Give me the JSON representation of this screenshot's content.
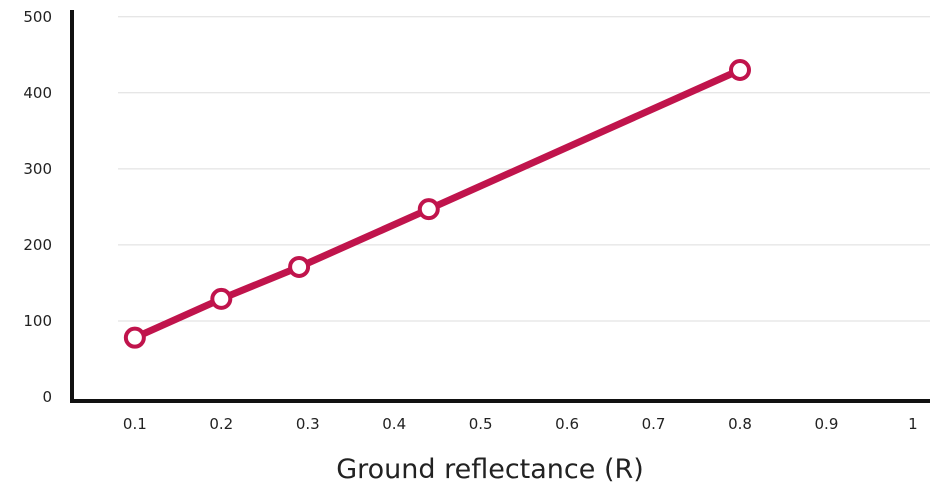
{
  "chart_data": {
    "type": "line",
    "title": "",
    "xlabel": "Ground reflectance (R)",
    "ylabel": "",
    "xlim": [
      0,
      1
    ],
    "ylim": [
      0,
      500
    ],
    "x_ticks": [
      "0.1",
      "0.2",
      "0.3",
      "0.4",
      "0.5",
      "0.6",
      "0.7",
      "0.8",
      "0.9",
      "1"
    ],
    "y_ticks": [
      "0",
      "100",
      "200",
      "300",
      "400",
      "500"
    ],
    "grid": "horizontal",
    "series": [
      {
        "x": [
          0.1,
          0.2,
          0.29,
          0.44,
          0.8
        ],
        "y": [
          78,
          129,
          171,
          247,
          430
        ],
        "color": "#c0144c"
      }
    ]
  }
}
